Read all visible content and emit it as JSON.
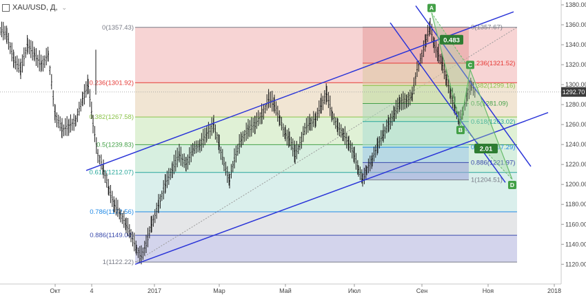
{
  "header": {
    "symbol": "XAU/USD, Д,",
    "arrow": "⌄",
    "icon": "chart-square-icon"
  },
  "chart_data": {
    "type": "candlestick",
    "title": "",
    "xlabel": "",
    "ylabel": "",
    "ylim": [
      1113,
      1387
    ],
    "yticks": [
      1120,
      1140,
      1160,
      1180,
      1200,
      1220,
      1240,
      1260,
      1280,
      1300,
      1320,
      1340,
      1360,
      1380
    ],
    "xticks": [
      {
        "label": "Окт",
        "x": 80
      },
      {
        "label": "4",
        "x": 133
      },
      {
        "label": "2017",
        "x": 224
      },
      {
        "label": "Мар",
        "x": 318
      },
      {
        "label": "Май",
        "x": 414
      },
      {
        "label": "Июл",
        "x": 514
      },
      {
        "label": "Сен",
        "x": 612
      },
      {
        "label": "Ноя",
        "x": 708
      },
      {
        "label": "2018",
        "x": 804
      }
    ],
    "current_price": {
      "value": 1292.7,
      "label": "1292.70"
    },
    "price_path": [
      [
        0,
        1355
      ],
      [
        10,
        1350
      ],
      [
        20,
        1325
      ],
      [
        30,
        1315
      ],
      [
        40,
        1340
      ],
      [
        50,
        1330
      ],
      [
        60,
        1320
      ],
      [
        70,
        1330
      ],
      [
        80,
        1270
      ],
      [
        90,
        1255
      ],
      [
        100,
        1258
      ],
      [
        110,
        1265
      ],
      [
        120,
        1285
      ],
      [
        128,
        1300
      ],
      [
        135,
        1260
      ],
      [
        142,
        1230
      ],
      [
        150,
        1215
      ],
      [
        158,
        1195
      ],
      [
        166,
        1180
      ],
      [
        175,
        1170
      ],
      [
        183,
        1160
      ],
      [
        190,
        1150
      ],
      [
        198,
        1135
      ],
      [
        205,
        1128
      ],
      [
        212,
        1140
      ],
      [
        220,
        1160
      ],
      [
        230,
        1180
      ],
      [
        240,
        1200
      ],
      [
        250,
        1215
      ],
      [
        260,
        1230
      ],
      [
        270,
        1220
      ],
      [
        280,
        1235
      ],
      [
        290,
        1240
      ],
      [
        300,
        1250
      ],
      [
        310,
        1260
      ],
      [
        318,
        1240
      ],
      [
        325,
        1220
      ],
      [
        333,
        1205
      ],
      [
        340,
        1225
      ],
      [
        350,
        1245
      ],
      [
        360,
        1255
      ],
      [
        370,
        1260
      ],
      [
        380,
        1270
      ],
      [
        390,
        1285
      ],
      [
        398,
        1280
      ],
      [
        406,
        1265
      ],
      [
        414,
        1250
      ],
      [
        420,
        1245
      ],
      [
        428,
        1230
      ],
      [
        435,
        1240
      ],
      [
        442,
        1255
      ],
      [
        450,
        1262
      ],
      [
        458,
        1265
      ],
      [
        466,
        1280
      ],
      [
        474,
        1290
      ],
      [
        482,
        1270
      ],
      [
        490,
        1258
      ],
      [
        498,
        1250
      ],
      [
        506,
        1242
      ],
      [
        514,
        1230
      ],
      [
        520,
        1215
      ],
      [
        526,
        1205
      ],
      [
        532,
        1215
      ],
      [
        540,
        1225
      ],
      [
        548,
        1240
      ],
      [
        556,
        1250
      ],
      [
        564,
        1262
      ],
      [
        572,
        1270
      ],
      [
        580,
        1282
      ],
      [
        590,
        1285
      ],
      [
        598,
        1290
      ],
      [
        605,
        1315
      ],
      [
        612,
        1330
      ],
      [
        618,
        1345
      ],
      [
        624,
        1357
      ],
      [
        630,
        1340
      ],
      [
        636,
        1330
      ],
      [
        642,
        1320
      ],
      [
        648,
        1305
      ],
      [
        654,
        1290
      ],
      [
        660,
        1278
      ],
      [
        666,
        1265
      ],
      [
        672,
        1275
      ],
      [
        678,
        1290
      ],
      [
        684,
        1300
      ],
      [
        690,
        1292
      ]
    ],
    "fib_retracement_main": {
      "levels": [
        {
          "ratio": "0",
          "price": 1357.43,
          "label": "0(1357.43)",
          "color": "#787b86"
        },
        {
          "ratio": "0.236",
          "price": 1301.92,
          "label": "0.236(1301.92)",
          "color": "#e53935"
        },
        {
          "ratio": "0.382",
          "price": 1267.58,
          "label": "0.382(1267.58)",
          "color": "#8bc34a"
        },
        {
          "ratio": "0.5",
          "price": 1239.83,
          "label": "0.5(1239.83)",
          "color": "#43a047"
        },
        {
          "ratio": "0.618",
          "price": 1212.07,
          "label": "0.618(1212.07)",
          "color": "#26a69a"
        },
        {
          "ratio": "0.786",
          "price": 1172.56,
          "label": "0.786(1172.56)",
          "color": "#1e88e5"
        },
        {
          "ratio": "0.886",
          "price": 1149.04,
          "label": "0.886(1149.04)",
          "color": "#3949ab"
        },
        {
          "ratio": "1",
          "price": 1122.22,
          "label": "1(1122.22)",
          "color": "#787b86"
        }
      ]
    },
    "fib_retracement_second": {
      "levels": [
        {
          "ratio": "0",
          "price": 1357.67,
          "label": "0(1357.67)",
          "color": "#787b86"
        },
        {
          "ratio": "0.236",
          "price": 1321.52,
          "label": "0.236(1321.52)",
          "color": "#e53935"
        },
        {
          "ratio": "0.382",
          "price": 1299.16,
          "label": "0.382(1299.16)",
          "color": "#8bc34a"
        },
        {
          "ratio": "0.5",
          "price": 1281.09,
          "label": "0.5(1281.09)",
          "color": "#43a047"
        },
        {
          "ratio": "0.618",
          "price": 1263.02,
          "label": "0.618(1263.02)",
          "color": "#26a69a"
        },
        {
          "ratio": "0.786",
          "price": 1237.29,
          "label": "0.786(1237.29)",
          "color": "#1e88e5"
        },
        {
          "ratio": "0.886",
          "price": 1221.97,
          "label": "0.886(1221.97)",
          "color": "#3949ab"
        },
        {
          "ratio": "1",
          "price": 1204.51,
          "label": "1(1204.51)",
          "color": "#787b86"
        }
      ]
    },
    "abcd_points": [
      {
        "label": "A",
        "price": 1372
      },
      {
        "label": "B",
        "price": 1260
      },
      {
        "label": "C",
        "price": 1315
      },
      {
        "label": "D",
        "price": 1205
      }
    ],
    "ratios": [
      {
        "label": "0.483",
        "price": 1345
      },
      {
        "label": "2.01",
        "price": 1236
      }
    ],
    "colors": {
      "channel": "#2b35d8",
      "abcd": "#66bb6a",
      "ratio_box": "#2e7d32",
      "price_tag": "#3c3c3c"
    }
  }
}
